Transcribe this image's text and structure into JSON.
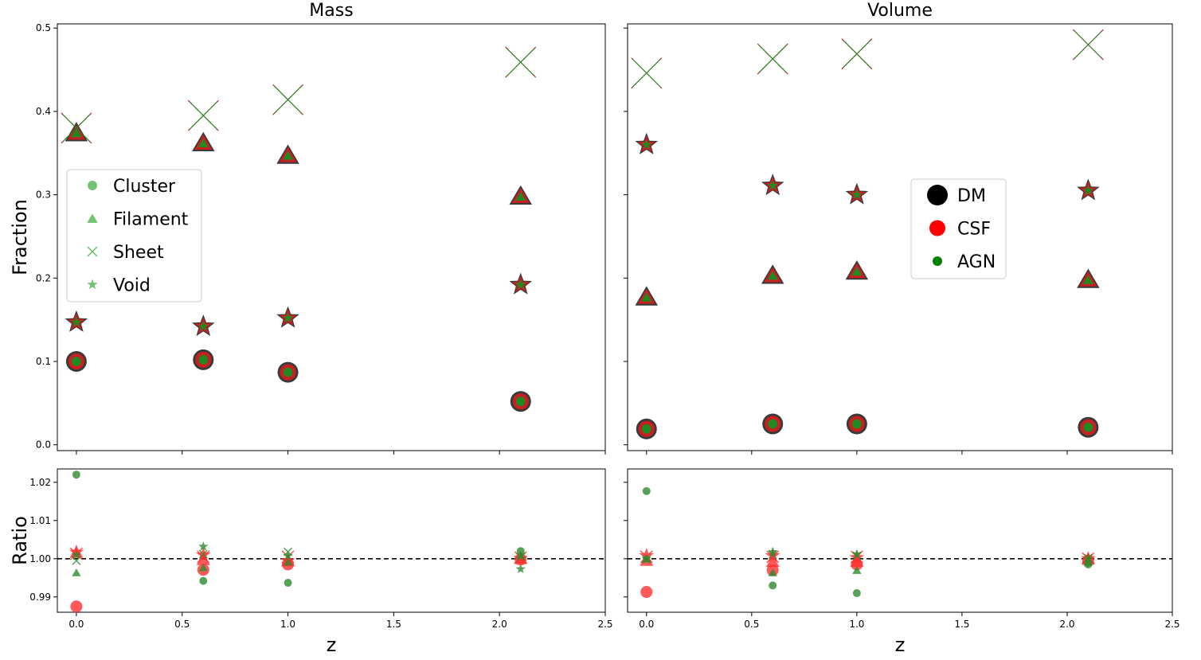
{
  "chart_data": {
    "type": "scatter",
    "xlabel": "z",
    "ylabel_top": "Fraction",
    "ylabel_bottom": "Ratio",
    "xlim": [
      -0.09,
      2.5
    ],
    "xticks": [
      "0.0",
      "0.5",
      "1.0",
      "1.5",
      "2.0",
      "2.5"
    ],
    "top_ylim": [
      -0.007,
      0.505
    ],
    "top_yticks": [
      "0.0",
      "0.1",
      "0.2",
      "0.3",
      "0.4",
      "0.5"
    ],
    "bottom_ylim": [
      0.986,
      1.0235
    ],
    "bottom_yticks": [
      "0.99",
      "1.00",
      "1.01",
      "1.02"
    ],
    "reference_line": 1.0,
    "z": [
      0.0,
      0.6,
      1.0,
      2.1
    ],
    "structure_legend": [
      {
        "name": "Cluster",
        "marker": "circle"
      },
      {
        "name": "Filament",
        "marker": "triangle"
      },
      {
        "name": "Sheet",
        "marker": "x"
      },
      {
        "name": "Void",
        "marker": "star"
      }
    ],
    "run_legend": [
      {
        "name": "DM",
        "color": "#000000"
      },
      {
        "name": "CSF",
        "color": "#ff0000"
      },
      {
        "name": "AGN",
        "color": "#008000"
      }
    ],
    "colors": {
      "dm": "#3a3a3a",
      "csf": "#c62020",
      "agn": "#1f8a1f",
      "sheet_line": "#7a2a10",
      "ratio_csf": "#ff3030",
      "ratio_agn": "#2e8b2e"
    },
    "panels": [
      {
        "title": "Mass",
        "fraction": {
          "Cluster": [
            0.1,
            0.102,
            0.087,
            0.052
          ],
          "Filament": [
            0.373,
            0.361,
            0.346,
            0.297
          ],
          "Sheet": [
            0.38,
            0.395,
            0.414,
            0.459
          ],
          "Void": [
            0.147,
            0.142,
            0.152,
            0.192
          ]
        },
        "ratio": {
          "CSF": {
            "Cluster": [
              0.9875,
              0.9971,
              0.9985,
              0.9998
            ],
            "Filament": [
              1.0014,
              0.9995,
              0.9992,
              0.9998
            ],
            "Sheet": [
              1.0013,
              1.0005,
              1.0005,
              1.0003
            ],
            "Void": [
              1.0017,
              1.001,
              0.9995,
              1.0001
            ]
          },
          "AGN": {
            "Cluster": [
              1.022,
              0.9942,
              0.9937,
              1.002
            ],
            "Filament": [
              0.9962,
              0.9975,
              0.999,
              1.0008
            ],
            "Sheet": [
              0.9995,
              1.0012,
              1.0018,
              1.0005
            ],
            "Void": [
              1.001,
              1.0032,
              1.0008,
              0.9973
            ]
          }
        }
      },
      {
        "title": "Volume",
        "fraction": {
          "Cluster": [
            0.019,
            0.025,
            0.025,
            0.021
          ],
          "Filament": [
            0.176,
            0.202,
            0.207,
            0.197
          ],
          "Sheet": [
            0.446,
            0.463,
            0.469,
            0.48
          ],
          "Void": [
            0.36,
            0.311,
            0.3,
            0.305
          ]
        },
        "ratio": {
          "CSF": {
            "Cluster": [
              0.9913,
              0.997,
              0.9985,
              0.9995
            ],
            "Filament": [
              0.9993,
              0.999,
              0.999,
              0.9998
            ],
            "Sheet": [
              1.0005,
              1.0005,
              1.0005,
              1.0
            ],
            "Void": [
              1.0008,
              1.0008,
              1.0003,
              1.0
            ]
          },
          "AGN": {
            "Cluster": [
              1.0177,
              0.993,
              0.991,
              0.9985
            ],
            "Filament": [
              0.9998,
              0.9962,
              0.9968,
              0.999
            ],
            "Sheet": [
              0.9998,
              1.001,
              1.0008,
              1.0002
            ],
            "Void": [
              1.0,
              1.0018,
              1.0012,
              1.0
            ]
          }
        }
      }
    ]
  }
}
